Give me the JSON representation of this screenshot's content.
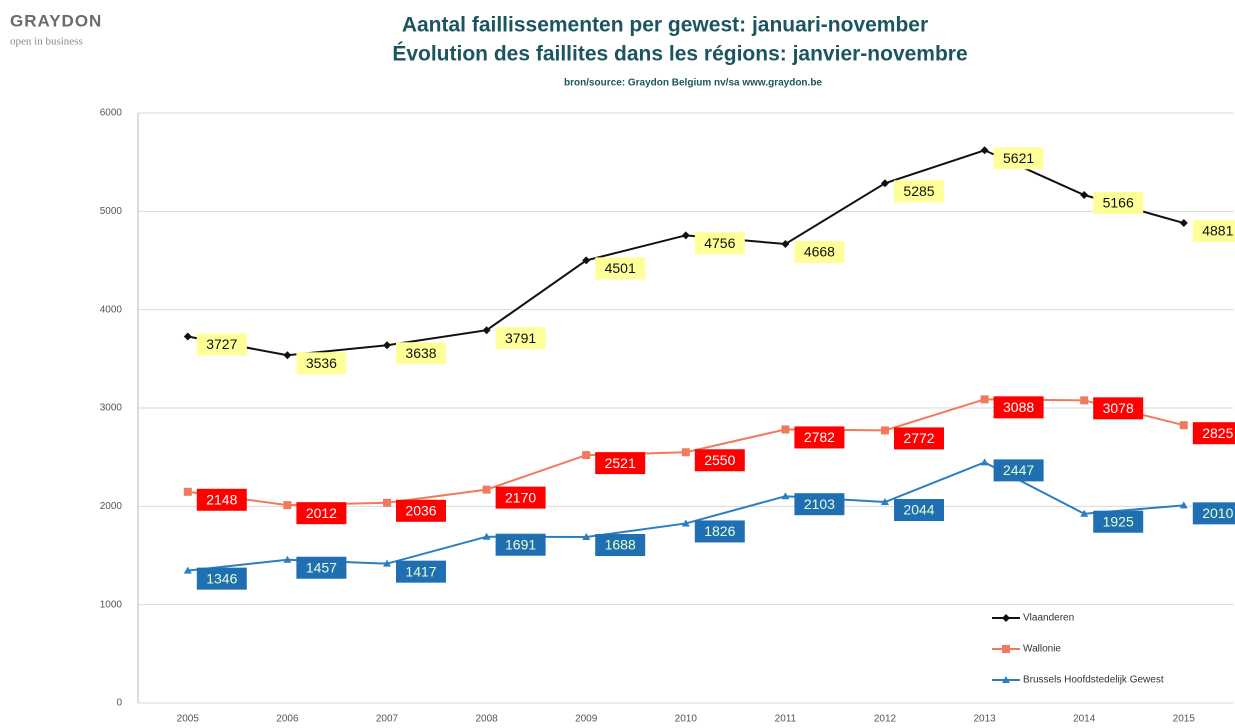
{
  "logo": {
    "name": "GRAYDON",
    "tagline": "open in business"
  },
  "chart_data": {
    "type": "line",
    "title": [
      "Aantal faillissementen per gewest: januari-november",
      "Évolution des faillites dans les régions: janvier-novembre"
    ],
    "source": "bron/source:  Graydon Belgium nv/sa    www.graydon.be",
    "categories": [
      "2005",
      "2006",
      "2007",
      "2008",
      "2009",
      "2010",
      "2011",
      "2012",
      "2013",
      "2014",
      "2015"
    ],
    "series": [
      {
        "name": "Vlaanderen",
        "color": "#111111",
        "marker": "diamond",
        "label_fill": "#ffff99",
        "label_color": "#111111",
        "values": [
          3727,
          3536,
          3638,
          3791,
          4501,
          4756,
          4668,
          5285,
          5621,
          5166,
          4881
        ]
      },
      {
        "name": "Wallonie",
        "color": "#f07a5c",
        "marker": "square",
        "label_fill": "#ff0000",
        "label_color": "#ffffff",
        "values": [
          2148,
          2012,
          2036,
          2170,
          2521,
          2550,
          2782,
          2772,
          3088,
          3078,
          2825
        ]
      },
      {
        "name": "Brussels Hoofdstedelijk Gewest",
        "color": "#2b7fc1",
        "marker": "triangle",
        "label_fill": "#1f6fb2",
        "label_color": "#e8ffd0",
        "values": [
          1346,
          1457,
          1417,
          1691,
          1688,
          1826,
          2103,
          2044,
          2447,
          1925,
          2010
        ]
      }
    ],
    "ylim": [
      0,
      6000
    ],
    "yticks": [
      0,
      1000,
      2000,
      3000,
      4000,
      5000,
      6000
    ],
    "grid": true,
    "legend": "lower right"
  }
}
